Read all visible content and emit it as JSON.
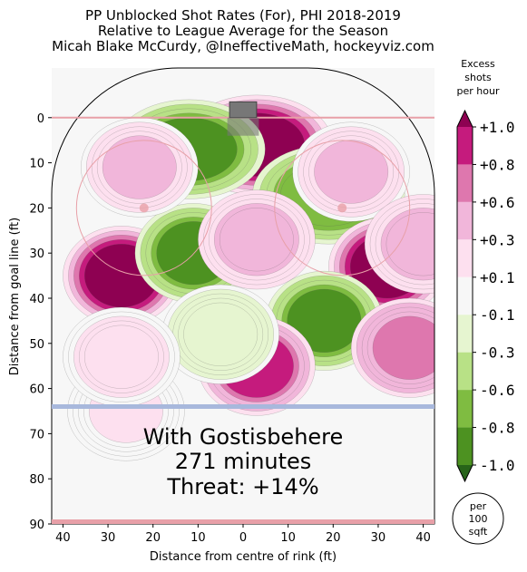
{
  "chart_data": {
    "type": "heatmap",
    "title": [
      "PP Unblocked Shot Rates (For), PHI 2018-2019",
      "Relative to League Average for the Season",
      "Micah Blake McCurdy, @IneffectiveMath, hockeyviz.com"
    ],
    "xlabel": "Distance from centre of rink (ft)",
    "ylabel": "Distance from goal line (ft)",
    "xlim": [
      42.5,
      -42.5
    ],
    "ylim": [
      90,
      -11
    ],
    "x_ticks": [
      40,
      30,
      20,
      10,
      0,
      10,
      20,
      30,
      40
    ],
    "y_ticks": [
      0,
      10,
      20,
      30,
      40,
      50,
      60,
      70,
      80,
      90
    ],
    "colorbar": {
      "title": [
        "Excess",
        "shots",
        "per hour"
      ],
      "levels": [
        "+1.0",
        "+0.8",
        "+0.6",
        "+0.3",
        "+0.1",
        "-0.1",
        "-0.3",
        "-0.6",
        "-0.8",
        "-1.0"
      ],
      "colors": [
        "#8e0152",
        "#c51b7d",
        "#de77ae",
        "#f1b6da",
        "#fde0ef",
        "#f7f7f7",
        "#e6f5d0",
        "#b8e186",
        "#7fbc41",
        "#4d9221",
        "#276419"
      ],
      "unit_badge": [
        "per",
        "100",
        "sqft"
      ]
    },
    "regions": [
      {
        "x": 3,
        "y": 6,
        "value": 1.0
      },
      {
        "x": -12,
        "y": 7,
        "value": -0.9
      },
      {
        "x": 19,
        "y": 17,
        "value": -0.8
      },
      {
        "x": 32,
        "y": 33,
        "value": 1.0
      },
      {
        "x": -27,
        "y": 35,
        "value": 1.0
      },
      {
        "x": -11,
        "y": 30,
        "value": -0.9
      },
      {
        "x": 18,
        "y": 45,
        "value": -0.9
      },
      {
        "x": 3,
        "y": 55,
        "value": 0.9
      },
      {
        "x": 37,
        "y": 51,
        "value": 0.7
      },
      {
        "x": -26,
        "y": 65,
        "value": 0.1
      },
      {
        "x": 24,
        "y": 12,
        "value": 0.3
      },
      {
        "x": -23,
        "y": 11,
        "value": 0.3
      },
      {
        "x": 3,
        "y": 27,
        "value": 0.4
      },
      {
        "x": -5,
        "y": 48,
        "value": -0.3
      },
      {
        "x": -27,
        "y": 53,
        "value": 0.2
      },
      {
        "x": 40,
        "y": 28,
        "value": 0.4
      }
    ],
    "annotation": [
      "With Gostisbehere",
      "271 minutes",
      "Threat: +14%"
    ]
  }
}
